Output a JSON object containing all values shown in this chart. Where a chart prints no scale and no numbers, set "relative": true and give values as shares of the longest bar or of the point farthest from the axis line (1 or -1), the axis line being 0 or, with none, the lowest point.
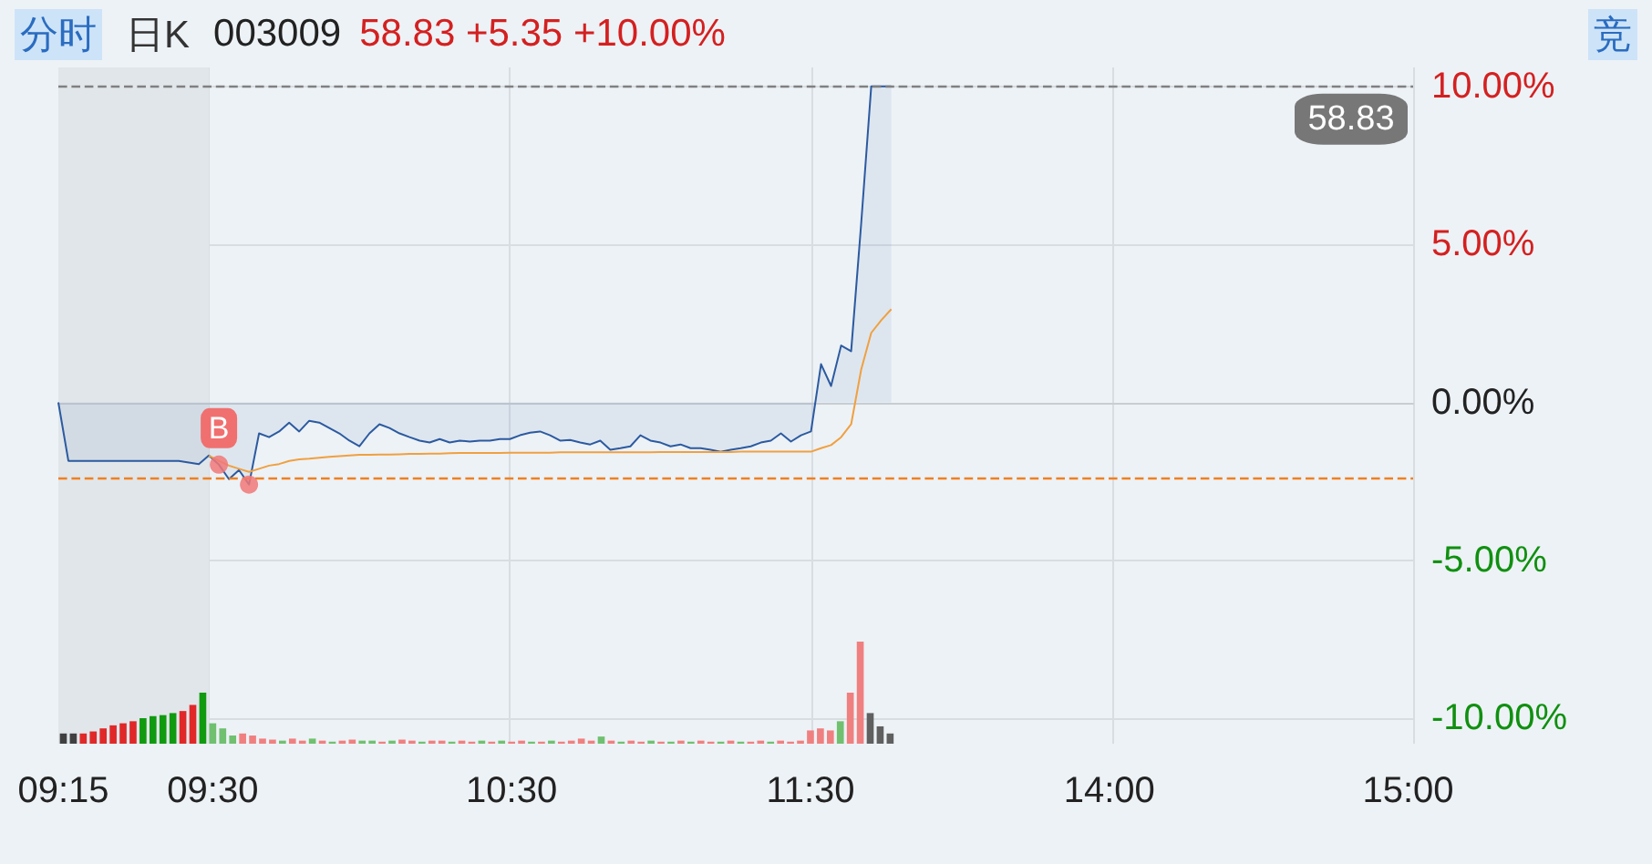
{
  "chart_data": [
    {
      "type": "area",
      "title": "003009",
      "subtitle": "58.83 +5.35 +10.00%",
      "annotations": [
        "分时",
        "日K",
        "竞",
        {
          "text": "B",
          "y": -1.97
        },
        {
          "text": "58.83",
          "y": 10
        }
      ],
      "categories": [
        "09:15",
        null,
        null,
        null,
        null,
        null,
        null,
        null,
        null,
        null,
        null,
        null,
        null,
        null,
        null,
        "09:30",
        null,
        null,
        null,
        null,
        null,
        null,
        null,
        null,
        null,
        null,
        null,
        null,
        null,
        null,
        null,
        null,
        null,
        null,
        null,
        null,
        null,
        null,
        null,
        null,
        null,
        null,
        null,
        null,
        null,
        "10:30",
        null,
        null,
        null,
        null,
        null,
        null,
        null,
        null,
        null,
        null,
        null,
        null,
        null,
        null,
        null,
        null,
        null,
        null,
        null,
        null,
        null,
        null,
        null,
        null,
        null,
        null,
        null,
        null,
        null,
        "11:30",
        null,
        null,
        null,
        null,
        null,
        null,
        null,
        null,
        null,
        null,
        null,
        null,
        null,
        null,
        null,
        null,
        null,
        null,
        null,
        null,
        null,
        null,
        null,
        null,
        null,
        null,
        null,
        null,
        null,
        "14:00",
        null,
        null,
        null,
        null,
        null,
        null,
        null,
        null,
        null,
        null,
        null,
        null,
        null,
        null,
        null,
        null,
        null,
        null,
        null,
        null,
        null,
        null,
        null,
        null,
        null,
        null,
        null,
        null,
        null,
        "15:00"
      ],
      "series": [
        {
          "type": "area",
          "color": "#2c5aa0",
          "values": [
            0,
            -1.85,
            -1.85,
            -1.85,
            -1.85,
            -1.85,
            -1.85,
            -1.85,
            -1.85,
            -1.85,
            -1.85,
            -1.85,
            -1.85,
            -1.9,
            -1.95,
            -1.68,
            -1.97,
            -2.43,
            -2.14,
            -2.6,
            -0.98,
            -1.1,
            -0.92,
            -0.64,
            -0.92,
            -0.58,
            -0.64,
            -0.81,
            -0.98,
            -1.21,
            -1.39,
            -0.98,
            -0.69,
            -0.81,
            -0.98,
            -1.1,
            -1.21,
            -1.27,
            -1.16,
            -1.27,
            -1.21,
            -1.24,
            -1.21,
            -1.21,
            -1.16,
            -1.16,
            -1.04,
            -0.96,
            -0.92,
            -1.04,
            -1.21,
            -1.19,
            -1.27,
            -1.33,
            -1.21,
            -1.5,
            -1.45,
            -1.39,
            -1.04,
            -1.21,
            -1.27,
            -1.39,
            -1.33,
            -1.45,
            -1.45,
            -1.5,
            -1.56,
            -1.5,
            -1.45,
            -1.39,
            -1.27,
            -1.21,
            -0.98,
            -1.24,
            -1.04,
            -0.92,
            1.21,
            0.52,
            1.8,
            1.62,
            5.66,
            10,
            10,
            10,
            null,
            null,
            null,
            null,
            null,
            null,
            null,
            null,
            null,
            null,
            null,
            null,
            null,
            null,
            null,
            null,
            null,
            null,
            null,
            null,
            null,
            null,
            null,
            null,
            null,
            null,
            null,
            null,
            null,
            null,
            null,
            null,
            null,
            null,
            null,
            null,
            null,
            null,
            null,
            null,
            null,
            null,
            null,
            null,
            null,
            null,
            null,
            null,
            null,
            null,
            null,
            null
          ]
        },
        {
          "type": "line",
          "color": "#f0a040",
          "values": [
            null,
            null,
            null,
            null,
            null,
            null,
            null,
            null,
            null,
            null,
            null,
            null,
            null,
            null,
            null,
            -1.68,
            -1.85,
            -2.0,
            -2.1,
            -2.2,
            -2.1,
            -2.0,
            -1.95,
            -1.85,
            -1.8,
            -1.78,
            -1.75,
            -1.72,
            -1.7,
            -1.68,
            -1.66,
            -1.66,
            -1.65,
            -1.65,
            -1.64,
            -1.63,
            -1.63,
            -1.62,
            -1.62,
            -1.61,
            -1.6,
            -1.6,
            -1.6,
            -1.6,
            -1.6,
            -1.59,
            -1.59,
            -1.59,
            -1.59,
            -1.59,
            -1.58,
            -1.58,
            -1.58,
            -1.58,
            -1.58,
            -1.58,
            -1.58,
            -1.58,
            -1.58,
            -1.58,
            -1.57,
            -1.57,
            -1.57,
            -1.57,
            -1.57,
            -1.57,
            -1.57,
            -1.57,
            -1.56,
            -1.56,
            -1.56,
            -1.56,
            -1.56,
            -1.56,
            -1.56,
            -1.56,
            -1.45,
            -1.35,
            -1.1,
            -0.69,
            1.04,
            2.2,
            2.6,
            2.95,
            null,
            null,
            null,
            null,
            null,
            null,
            null,
            null,
            null,
            null,
            null,
            null,
            null,
            null,
            null,
            null,
            null,
            null,
            null,
            null,
            null,
            null,
            null,
            null,
            null,
            null,
            null,
            null,
            null,
            null,
            null,
            null,
            null,
            null,
            null,
            null,
            null,
            null,
            null,
            null,
            null,
            null,
            null,
            null,
            null,
            null,
            null,
            null,
            null,
            null,
            null,
            null
          ]
        },
        {
          "type": "scatter",
          "color": "#f07878",
          "values": [
            null,
            null,
            null,
            null,
            null,
            null,
            null,
            null,
            null,
            null,
            null,
            null,
            null,
            null,
            null,
            null,
            -1.97,
            null,
            null,
            -2.6,
            null,
            null,
            null,
            null,
            null,
            null,
            null,
            null,
            null,
            null,
            null,
            null,
            null,
            null,
            null,
            null,
            null,
            null,
            null,
            null,
            null,
            null,
            null,
            null,
            null,
            null,
            null,
            null,
            null,
            null,
            null,
            null,
            null,
            null,
            null,
            null,
            null,
            null,
            null,
            null,
            null,
            null,
            null,
            null,
            null,
            null,
            null,
            null,
            null,
            null,
            null,
            null,
            null,
            null,
            null,
            null,
            null,
            null,
            null,
            null,
            null,
            null,
            null,
            null,
            null,
            null,
            null,
            null,
            null,
            null,
            null,
            null,
            null,
            null,
            null,
            null,
            null,
            null,
            null,
            null,
            null,
            null,
            null,
            null,
            null,
            null,
            null,
            null,
            null,
            null,
            null,
            null,
            null,
            null,
            null,
            null,
            null,
            null,
            null,
            null,
            null,
            null,
            null,
            null,
            null,
            null,
            null,
            null,
            null,
            null,
            null,
            null,
            null,
            null,
            null,
            null
          ]
        }
      ],
      "ylim": [
        -10.8,
        10.6
      ],
      "yticks": [
        {
          "value": -10,
          "label": "-10.00%"
        },
        {
          "value": -5,
          "label": "-5.00%"
        },
        {
          "value": 0,
          "label": "0.00%"
        },
        {
          "value": 5,
          "label": "5.00%"
        },
        {
          "value": 10,
          "label": "10.00%"
        }
      ],
      "ref_lines": [
        {
          "axis": "y",
          "value": 10,
          "color": "#808080",
          "line_style": "dashed"
        },
        {
          "axis": "y",
          "value": -2.37,
          "color": "#f08020",
          "line_style": "dashed"
        }
      ],
      "bands": [
        {
          "axis": "x",
          "from": "09:15",
          "to": "09:30",
          "color": "#e1e6ea"
        }
      ],
      "grid": true,
      "tick_labels": "y"
    },
    {
      "type": "bar",
      "relative": true,
      "tick_labels": "x",
      "categories": [
        "09:15",
        null,
        null,
        null,
        null,
        null,
        null,
        null,
        null,
        null,
        null,
        null,
        null,
        null,
        null,
        "09:30",
        null,
        null,
        null,
        null,
        null,
        null,
        null,
        null,
        null,
        null,
        null,
        null,
        null,
        null,
        null,
        null,
        null,
        null,
        null,
        null,
        null,
        null,
        null,
        null,
        null,
        null,
        null,
        null,
        null,
        "10:30",
        null,
        null,
        null,
        null,
        null,
        null,
        null,
        null,
        null,
        null,
        null,
        null,
        null,
        null,
        null,
        null,
        null,
        null,
        null,
        null,
        null,
        null,
        null,
        null,
        null,
        null,
        null,
        null,
        null,
        "11:30",
        null,
        null,
        null,
        null,
        null,
        null,
        null,
        null,
        null,
        null,
        null,
        null,
        null,
        null,
        null,
        null,
        null,
        null,
        null,
        null,
        null,
        null,
        null,
        null,
        null,
        null,
        null,
        null,
        null,
        "14:00",
        null,
        null,
        null,
        null,
        null,
        null,
        null,
        null,
        null,
        null,
        null,
        null,
        null,
        null,
        null,
        null,
        null,
        null,
        null,
        null,
        null,
        null,
        null,
        null,
        null,
        null,
        null,
        null,
        null,
        "15:00"
      ],
      "values": [
        0.1,
        0.1,
        0.1,
        0.12,
        0.15,
        0.18,
        0.2,
        0.22,
        0.25,
        0.27,
        0.28,
        0.3,
        0.32,
        0.38,
        0.5,
        0.2,
        0.15,
        0.08,
        0.1,
        0.08,
        0.05,
        0.04,
        0.03,
        0.05,
        0.03,
        0.05,
        0.03,
        0.02,
        0.03,
        0.04,
        0.03,
        0.03,
        0.02,
        0.03,
        0.04,
        0.03,
        0.02,
        0.03,
        0.03,
        0.02,
        0.03,
        0.02,
        0.03,
        0.02,
        0.03,
        0.02,
        0.03,
        0.02,
        0.02,
        0.03,
        0.02,
        0.03,
        0.05,
        0.03,
        0.07,
        0.03,
        0.02,
        0.03,
        0.02,
        0.03,
        0.02,
        0.02,
        0.03,
        0.02,
        0.03,
        0.02,
        0.02,
        0.03,
        0.02,
        0.02,
        0.03,
        0.02,
        0.03,
        0.02,
        0.03,
        0.13,
        0.15,
        0.13,
        0.22,
        0.5,
        1,
        0.3,
        0.17,
        0.1,
        null,
        null,
        null,
        null,
        null,
        null,
        null,
        null,
        null,
        null,
        null,
        null,
        null,
        null,
        null,
        null,
        null,
        null,
        null,
        null,
        null,
        null,
        null,
        null,
        null,
        null,
        null,
        null,
        null,
        null,
        null,
        null,
        null,
        null,
        null,
        null,
        null,
        null,
        null,
        null,
        null,
        null,
        null,
        null,
        null,
        null,
        null,
        null,
        null,
        null,
        null,
        null
      ],
      "colors": [
        "#404040",
        "#404040",
        "#e02828",
        "#e02828",
        "#e02828",
        "#e02828",
        "#e02828",
        "#e02828",
        "#109a10",
        "#109a10",
        "#109a10",
        "#109a10",
        "#e02828",
        "#e02828",
        "#109a10",
        "#70c070",
        "#70c070",
        "#70c070",
        "#f08080",
        "#f08080",
        "#f08080",
        "#f08080",
        "#70c070",
        "#f08080",
        "#f08080",
        "#70c070",
        "#f08080",
        "#70c070",
        "#f08080",
        "#f08080",
        "#70c070",
        "#70c070",
        "#f08080",
        "#70c070",
        "#f08080",
        "#f08080",
        "#70c070",
        "#f08080",
        "#f08080",
        "#70c070",
        "#f08080",
        "#f08080",
        "#70c070",
        "#f08080",
        "#70c070",
        "#f08080",
        "#f08080",
        "#70c070",
        "#f08080",
        "#70c070",
        "#f08080",
        "#f08080",
        "#f08080",
        "#f08080",
        "#70c070",
        "#f08080",
        "#70c070",
        "#f08080",
        "#f08080",
        "#70c070",
        "#f08080",
        "#70c070",
        "#f08080",
        "#70c070",
        "#f08080",
        "#f08080",
        "#70c070",
        "#f08080",
        "#70c070",
        "#f08080",
        "#f08080",
        "#70c070",
        "#f08080",
        "#f08080",
        "#f08080",
        "#f08080",
        "#f08080",
        "#f08080",
        "#70c070",
        "#f08080",
        "#f08080",
        "#606060",
        "#606060",
        "#606060",
        null,
        null,
        null,
        null,
        null,
        null,
        null,
        null,
        null,
        null,
        null,
        null,
        null,
        null,
        null,
        null,
        null,
        null,
        null,
        null,
        null,
        null,
        null,
        null,
        null,
        null,
        null,
        null,
        null,
        null,
        null,
        null,
        null,
        null,
        null,
        null,
        null,
        null,
        null,
        null,
        null,
        null,
        null,
        null,
        null,
        null,
        null,
        null,
        null,
        null,
        null,
        null
      ]
    }
  ]
}
